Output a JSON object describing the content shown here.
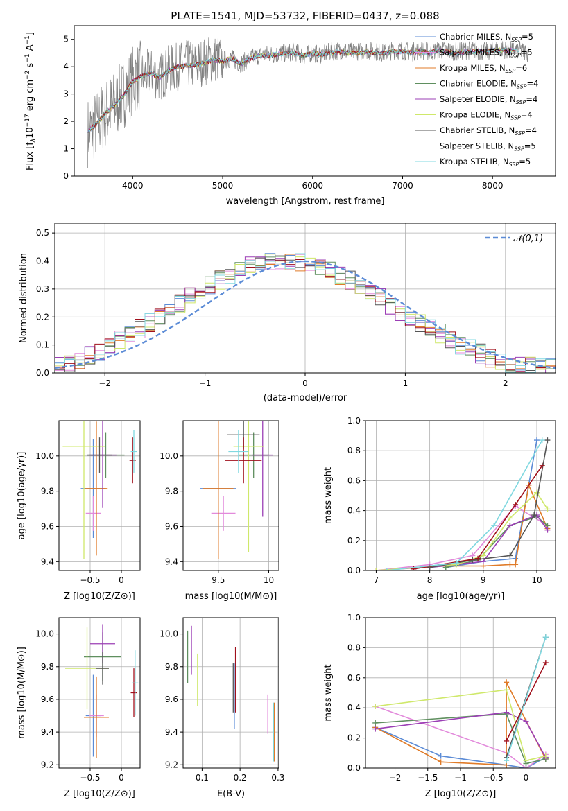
{
  "chart_data": [
    {
      "id": "spectrum",
      "type": "line",
      "title": "PLATE=1541, MJD=53732, FIBERID=0437, z=0.088",
      "xlabel": "wavelength [Angstrom, rest frame]",
      "ylabel": "Flux [f_λ 10^-17 erg cm^-2 s^-1 A^-1]",
      "xlim": [
        3350,
        8700
      ],
      "ylim": [
        0,
        5.5
      ],
      "xticks": [
        4000,
        5000,
        6000,
        7000,
        8000
      ],
      "yticks": [
        0,
        1,
        2,
        3,
        4,
        5
      ],
      "grid": false,
      "legend_position": "top-right",
      "observed": {
        "name": "",
        "color": "#808080",
        "x": [
          3500,
          3600,
          3700,
          3800,
          3900,
          4000,
          4100,
          4200,
          4300,
          4400,
          4500,
          4600,
          4700,
          4800,
          4900,
          5000,
          5100,
          5200,
          5300,
          5400,
          5500,
          5600,
          5700,
          5800,
          5900,
          6000,
          6100,
          6200,
          6300,
          6400,
          6500,
          6600,
          6700,
          6800,
          6900,
          7000,
          7100,
          7200,
          7300,
          7400,
          7500,
          7600,
          7700,
          7800,
          7900,
          8000,
          8100,
          8200,
          8300,
          8400
        ],
        "y": [
          1.6,
          1.9,
          2.3,
          2.6,
          3.0,
          3.5,
          3.7,
          3.8,
          3.6,
          3.9,
          4.0,
          4.1,
          4.05,
          4.2,
          4.3,
          4.25,
          4.3,
          4.1,
          4.3,
          4.4,
          4.45,
          4.45,
          4.5,
          4.55,
          4.4,
          4.5,
          4.45,
          4.55,
          4.6,
          4.55,
          4.55,
          4.6,
          4.55,
          4.5,
          4.6,
          4.6,
          4.55,
          4.6,
          4.55,
          4.6,
          4.6,
          4.55,
          4.6,
          4.6,
          4.55,
          4.6,
          4.65,
          4.6,
          4.6,
          4.5
        ]
      },
      "series": [
        {
          "name": "Chabrier MILES, N_SSP=5",
          "color": "#5b8bd6"
        },
        {
          "name": "Salpeter MILES, N_SSP=5",
          "color": "#e28adb"
        },
        {
          "name": "Kroupa MILES, N_SSP=6",
          "color": "#e07b28"
        },
        {
          "name": "Chabrier ELODIE, N_SSP=4",
          "color": "#5f8f5f"
        },
        {
          "name": "Salpeter ELODIE, N_SSP=4",
          "color": "#9b3fb5"
        },
        {
          "name": "Kroupa ELODIE, N_SSP=4",
          "color": "#cfe86a"
        },
        {
          "name": "Chabrier STELIB, N_SSP=4",
          "color": "#555555"
        },
        {
          "name": "Salpeter STELIB, N_SSP=5",
          "color": "#a0101c"
        },
        {
          "name": "Kroupa STELIB, N_SSP=5",
          "color": "#80d8e0"
        }
      ],
      "model_continuum": {
        "x": [
          3500,
          3600,
          3700,
          3800,
          3900,
          4000,
          4100,
          4200,
          4300,
          4400,
          4500,
          4600,
          4700,
          4800,
          4900,
          5000,
          5100,
          5200,
          5300,
          5400,
          5500,
          5600,
          5700,
          5800,
          5900,
          6000,
          6100,
          6200,
          6300,
          6400,
          6500,
          6600,
          6700,
          6800,
          6900,
          7000,
          7100,
          7200,
          7300,
          7400,
          7500,
          7600,
          7700,
          7800,
          7900,
          8000,
          8100,
          8200,
          8300
        ],
        "y": [
          1.65,
          1.9,
          2.3,
          2.6,
          2.95,
          3.45,
          3.65,
          3.75,
          3.6,
          3.85,
          4.0,
          4.05,
          4.05,
          4.15,
          4.25,
          4.2,
          4.3,
          4.1,
          4.3,
          4.4,
          4.4,
          4.45,
          4.5,
          4.5,
          4.4,
          4.5,
          4.45,
          4.5,
          4.55,
          4.5,
          4.5,
          4.55,
          4.5,
          4.5,
          4.55,
          4.55,
          4.5,
          4.55,
          4.5,
          4.6,
          4.55,
          4.5,
          4.55,
          4.55,
          4.55,
          4.6,
          4.6,
          4.6,
          4.6
        ]
      }
    },
    {
      "id": "residuals",
      "type": "line",
      "title": "",
      "xlabel": "(data-model)/error",
      "ylabel": "Normed distribution",
      "xlim": [
        -2.5,
        2.5
      ],
      "ylim": [
        0,
        0.535
      ],
      "xticks": [
        -2,
        -1,
        0,
        1,
        2
      ],
      "yticks": [
        0.0,
        0.1,
        0.2,
        0.3,
        0.4,
        0.5
      ],
      "grid": true,
      "legend_position": "top-right",
      "reference": {
        "name": "𝒩(0,1)",
        "color": "#5b8bd6",
        "style": "dashed"
      },
      "bin_width": 0.1,
      "hist_mean": [
        0.025,
        0.03,
        0.045,
        0.06,
        0.075,
        0.1,
        0.12,
        0.14,
        0.16,
        0.18,
        0.2,
        0.22,
        0.245,
        0.27,
        0.29,
        0.31,
        0.33,
        0.35,
        0.365,
        0.38,
        0.39,
        0.4,
        0.4,
        0.4,
        0.395,
        0.39,
        0.38,
        0.365,
        0.35,
        0.33,
        0.31,
        0.29,
        0.27,
        0.245,
        0.22,
        0.2,
        0.18,
        0.16,
        0.14,
        0.12,
        0.1,
        0.085,
        0.07,
        0.055,
        0.045,
        0.035,
        0.03,
        0.025,
        0.02,
        0.02
      ]
    },
    {
      "id": "z-age",
      "type": "scatter",
      "xlabel": "Z [log10(Z/Z⊙)]",
      "ylabel": "age  [log10(age/yr)]",
      "xlim": [
        -1.0,
        0.3
      ],
      "ylim": [
        9.35,
        10.2
      ],
      "xticks": [
        -0.5,
        0.0
      ],
      "yticks": [
        9.4,
        9.6,
        9.8,
        10.0
      ],
      "grid": true,
      "points": [
        {
          "x": -0.45,
          "y": 9.815,
          "xerr": 0.2,
          "yerr": 0.28,
          "color": "#5b8bd6"
        },
        {
          "x": -0.45,
          "y": 9.675,
          "xerr": 0.12,
          "yerr": 0.1,
          "color": "#e28adb"
        },
        {
          "x": -0.4,
          "y": 9.815,
          "xerr": 0.18,
          "yerr": 0.38,
          "color": "#e07b28"
        },
        {
          "x": -0.25,
          "y": 10.005,
          "xerr": 0.3,
          "yerr": 0.13,
          "color": "#5f8f5f"
        },
        {
          "x": -0.3,
          "y": 10.005,
          "xerr": 0.22,
          "yerr": 0.3,
          "color": "#9b3fb5"
        },
        {
          "x": -0.6,
          "y": 10.055,
          "xerr": 0.34,
          "yerr": 0.64,
          "color": "#cfe86a"
        },
        {
          "x": -0.35,
          "y": 10.005,
          "xerr": 0.2,
          "yerr": 0.1,
          "color": "#555555"
        },
        {
          "x": 0.18,
          "y": 9.975,
          "xerr": 0.05,
          "yerr": 0.13,
          "color": "#a0101c"
        },
        {
          "x": 0.2,
          "y": 10.025,
          "xerr": 0.05,
          "yerr": 0.12,
          "color": "#80d8e0"
        }
      ]
    },
    {
      "id": "mass-age",
      "type": "scatter",
      "xlabel": "mass [log10(M/M⊙)]",
      "ylabel": "",
      "xlim": [
        9.15,
        10.1
      ],
      "ylim": [
        9.35,
        10.2
      ],
      "xticks": [
        9.5,
        10.0
      ],
      "yticks": [
        9.4,
        9.6,
        9.8,
        10.0
      ],
      "grid": true,
      "points": [
        {
          "x": 9.5,
          "y": 9.815,
          "xerr": 0.18,
          "yerr": 0.28,
          "color": "#5b8bd6"
        },
        {
          "x": 9.55,
          "y": 9.675,
          "xerr": 0.12,
          "yerr": 0.1,
          "color": "#e28adb"
        },
        {
          "x": 9.5,
          "y": 9.815,
          "xerr": 0.15,
          "yerr": 0.4,
          "color": "#e07b28"
        },
        {
          "x": 9.85,
          "y": 10.005,
          "xerr": 0.15,
          "yerr": 0.13,
          "color": "#5f8f5f"
        },
        {
          "x": 9.94,
          "y": 10.005,
          "xerr": 0.1,
          "yerr": 0.35,
          "color": "#9b3fb5"
        },
        {
          "x": 9.8,
          "y": 10.055,
          "xerr": 0.15,
          "yerr": 0.6,
          "color": "#cfe86a"
        },
        {
          "x": 9.75,
          "y": 10.12,
          "xerr": 0.16,
          "yerr": 0.08,
          "color": "#555555"
        },
        {
          "x": 9.75,
          "y": 9.975,
          "xerr": 0.18,
          "yerr": 0.13,
          "color": "#a0101c"
        },
        {
          "x": 9.7,
          "y": 10.025,
          "xerr": 0.1,
          "yerr": 0.12,
          "color": "#80d8e0"
        }
      ]
    },
    {
      "id": "age-weight",
      "type": "line",
      "xlabel": "age  [log10(age/yr)]",
      "ylabel": "mass weight",
      "xlim": [
        6.8,
        10.35
      ],
      "ylim": [
        0.0,
        1.0
      ],
      "xticks": [
        7,
        8,
        9,
        10
      ],
      "yticks": [
        0.0,
        0.2,
        0.4,
        0.6,
        0.8,
        1.0
      ],
      "grid": true,
      "series": [
        {
          "color": "#5b8bd6",
          "x": [
            8.3,
            9.0,
            9.6,
            10.0
          ],
          "y": [
            0.02,
            0.06,
            0.08,
            0.87
          ]
        },
        {
          "color": "#e28adb",
          "x": [
            7.0,
            8.0,
            8.8,
            9.6,
            10.2
          ],
          "y": [
            0.0,
            0.04,
            0.1,
            0.43,
            0.3
          ]
        },
        {
          "color": "#e07b28",
          "x": [
            7.0,
            8.3,
            9.0,
            9.5,
            9.6,
            9.85,
            10.2
          ],
          "y": [
            0.0,
            0.03,
            0.03,
            0.04,
            0.04,
            0.57,
            0.28
          ]
        },
        {
          "color": "#5f8f5f",
          "x": [
            8.3,
            8.9,
            9.5,
            10.0,
            10.2
          ],
          "y": [
            0.02,
            0.07,
            0.3,
            0.36,
            0.3
          ]
        },
        {
          "color": "#9b3fb5",
          "x": [
            8.0,
            9.0,
            9.5,
            10.0,
            10.2
          ],
          "y": [
            0.02,
            0.06,
            0.3,
            0.37,
            0.27
          ]
        },
        {
          "color": "#cfe86a",
          "x": [
            7.0,
            8.5,
            9.0,
            9.5,
            10.0,
            10.2
          ],
          "y": [
            0.0,
            0.04,
            0.1,
            0.35,
            0.52,
            0.41
          ]
        },
        {
          "color": "#555555",
          "x": [
            8.0,
            8.8,
            9.5,
            9.95,
            10.2
          ],
          "y": [
            0.02,
            0.07,
            0.1,
            0.37,
            0.87
          ]
        },
        {
          "color": "#a0101c",
          "x": [
            7.7,
            8.9,
            9.6,
            10.1
          ],
          "y": [
            0.01,
            0.08,
            0.44,
            0.7
          ]
        },
        {
          "color": "#80d8e0",
          "x": [
            7.2,
            8.5,
            9.2,
            10.1
          ],
          "y": [
            0.0,
            0.05,
            0.3,
            0.87
          ]
        }
      ]
    },
    {
      "id": "z-mass",
      "type": "scatter",
      "xlabel": "Z [log10(Z/Z⊙)]",
      "ylabel": "mass [log10(M/M⊙)]",
      "xlim": [
        -1.0,
        0.3
      ],
      "ylim": [
        9.18,
        10.1
      ],
      "xticks": [
        -0.5,
        0.0
      ],
      "yticks": [
        9.2,
        9.4,
        9.6,
        9.8,
        10.0
      ],
      "grid": true,
      "points": [
        {
          "x": -0.45,
          "y": 9.5,
          "xerr": 0.12,
          "yerr": 0.25,
          "color": "#5b8bd6"
        },
        {
          "x": -0.4,
          "y": 9.5,
          "xerr": 0.12,
          "yerr": 0.13,
          "color": "#e28adb"
        },
        {
          "x": -0.4,
          "y": 9.49,
          "xerr": 0.2,
          "yerr": 0.25,
          "color": "#e07b28"
        },
        {
          "x": -0.3,
          "y": 9.86,
          "xerr": 0.3,
          "yerr": 0.15,
          "color": "#5f8f5f"
        },
        {
          "x": -0.3,
          "y": 9.94,
          "xerr": 0.2,
          "yerr": 0.12,
          "color": "#9b3fb5"
        },
        {
          "x": -0.55,
          "y": 9.79,
          "xerr": 0.35,
          "yerr": 0.25,
          "color": "#cfe86a"
        },
        {
          "x": -0.3,
          "y": 9.79,
          "xerr": 0.1,
          "yerr": 0.1,
          "color": "#555555"
        },
        {
          "x": 0.2,
          "y": 9.64,
          "xerr": 0.05,
          "yerr": 0.15,
          "color": "#a0101c"
        },
        {
          "x": 0.22,
          "y": 9.7,
          "xerr": 0.05,
          "yerr": 0.2,
          "color": "#80d8e0"
        }
      ]
    },
    {
      "id": "ebv-mass",
      "type": "scatter",
      "xlabel": "E(B-V)",
      "ylabel": "",
      "xlim": [
        0.05,
        0.302
      ],
      "ylim": [
        9.18,
        10.1
      ],
      "xticks": [
        0.1,
        0.2,
        0.3
      ],
      "yticks": [
        9.2,
        9.4,
        9.6,
        9.8,
        10.0
      ],
      "grid": true,
      "points": [
        {
          "x": 0.185,
          "y": 9.62,
          "yerr": 0.2,
          "color": "#5b8bd6"
        },
        {
          "x": 0.273,
          "y": 9.51,
          "yerr": 0.12,
          "color": "#e28adb"
        },
        {
          "x": 0.29,
          "y": 9.4,
          "yerr": 0.18,
          "color": "#e07b28"
        },
        {
          "x": 0.062,
          "y": 9.86,
          "yerr": 0.16,
          "color": "#5f8f5f"
        },
        {
          "x": 0.072,
          "y": 9.9,
          "yerr": 0.15,
          "color": "#9b3fb5"
        },
        {
          "x": 0.088,
          "y": 9.72,
          "yerr": 0.16,
          "color": "#cfe86a"
        },
        {
          "x": 0.182,
          "y": 9.67,
          "yerr": 0.15,
          "color": "#555555"
        },
        {
          "x": 0.188,
          "y": 9.72,
          "yerr": 0.2,
          "color": "#a0101c"
        },
        {
          "x": 0.288,
          "y": 9.4,
          "yerr": 0.18,
          "color": "#80d8e0"
        }
      ]
    },
    {
      "id": "z-weight",
      "type": "line",
      "xlabel": "Z [log10(Z/Z⊙)]",
      "ylabel": "mass weight",
      "xlim": [
        -2.45,
        0.45
      ],
      "ylim": [
        0.0,
        1.0
      ],
      "xticks": [
        -2.0,
        -1.5,
        -1.0,
        -0.5,
        0.0
      ],
      "yticks": [
        0.0,
        0.2,
        0.4,
        0.6,
        0.8,
        1.0
      ],
      "grid": true,
      "series": [
        {
          "color": "#5b8bd6",
          "x": [
            -2.3,
            -1.3,
            -0.3,
            0.0,
            0.3
          ],
          "y": [
            0.27,
            0.08,
            0.02,
            0.0,
            0.07
          ]
        },
        {
          "color": "#e28adb",
          "x": [
            -2.3,
            -0.3,
            0.0,
            0.3
          ],
          "y": [
            0.41,
            0.1,
            0.0,
            0.09
          ]
        },
        {
          "color": "#e07b28",
          "x": [
            -2.3,
            -1.3,
            -0.3,
            -0.3,
            0.3
          ],
          "y": [
            0.27,
            0.04,
            0.02,
            0.57,
            0.06
          ]
        },
        {
          "color": "#5f8f5f",
          "x": [
            -2.3,
            -0.3,
            0.0,
            0.3
          ],
          "y": [
            0.3,
            0.36,
            0.03,
            0.06
          ]
        },
        {
          "color": "#9b3fb5",
          "x": [
            -2.3,
            -0.3,
            0.0,
            0.3
          ],
          "y": [
            0.26,
            0.37,
            0.31,
            0.07
          ]
        },
        {
          "color": "#cfe86a",
          "x": [
            -2.3,
            -0.3,
            0.0,
            0.3
          ],
          "y": [
            0.41,
            0.52,
            0.05,
            0.08
          ]
        },
        {
          "color": "#555555",
          "x": [
            -0.3,
            0.3
          ],
          "y": [
            0.07,
            0.87
          ]
        },
        {
          "color": "#a0101c",
          "x": [
            -0.3,
            0.3
          ],
          "y": [
            0.18,
            0.7
          ]
        },
        {
          "color": "#80d8e0",
          "x": [
            -0.3,
            0.3
          ],
          "y": [
            0.05,
            0.87
          ]
        }
      ]
    }
  ]
}
